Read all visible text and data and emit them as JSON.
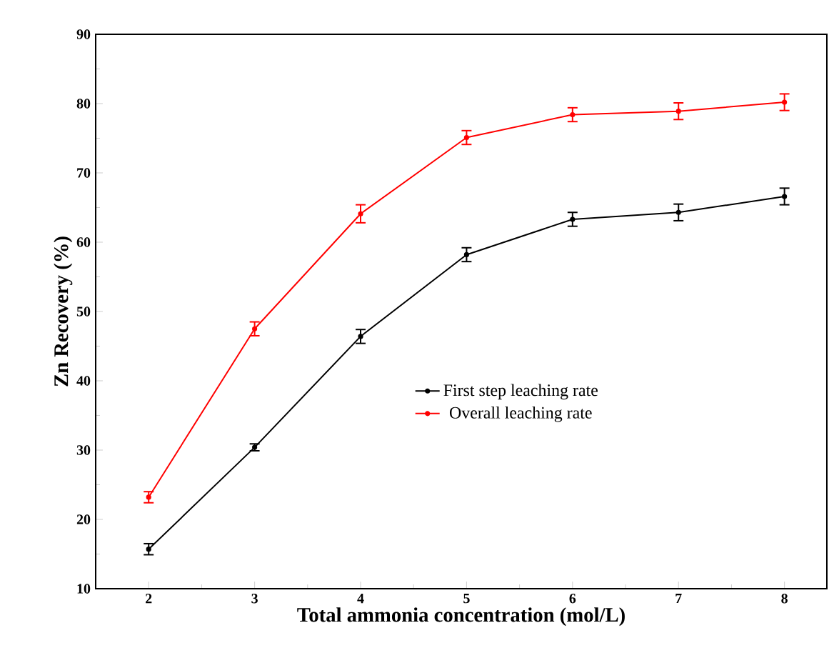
{
  "chart_data": {
    "type": "line",
    "xlabel": "Total ammonia concentration (mol/L)",
    "ylabel": "Zn Recovery (%)",
    "x": [
      2,
      3,
      4,
      5,
      6,
      7,
      8
    ],
    "series": [
      {
        "name": "First step leaching rate",
        "color": "#000000",
        "values": [
          15.7,
          30.4,
          46.4,
          58.2,
          63.3,
          64.3,
          66.6
        ],
        "errors": [
          0.8,
          0.5,
          1,
          1,
          1,
          1.2,
          1.2
        ]
      },
      {
        "name": "Overall leaching rate",
        "color": "#ff0000",
        "values": [
          23.2,
          47.5,
          64.1,
          75.1,
          78.4,
          78.9,
          80.2
        ],
        "errors": [
          0.8,
          1,
          1.3,
          1,
          1,
          1.2,
          1.2
        ]
      }
    ],
    "xlim": [
      1.5,
      8.4
    ],
    "ylim": [
      10,
      90
    ],
    "xticks": [
      2,
      3,
      4,
      5,
      6,
      7,
      8
    ],
    "yticks": [
      10,
      20,
      30,
      40,
      50,
      60,
      70,
      80,
      90
    ],
    "grid": false,
    "legend": "right",
    "marker": "circle",
    "line_style": "solid"
  }
}
